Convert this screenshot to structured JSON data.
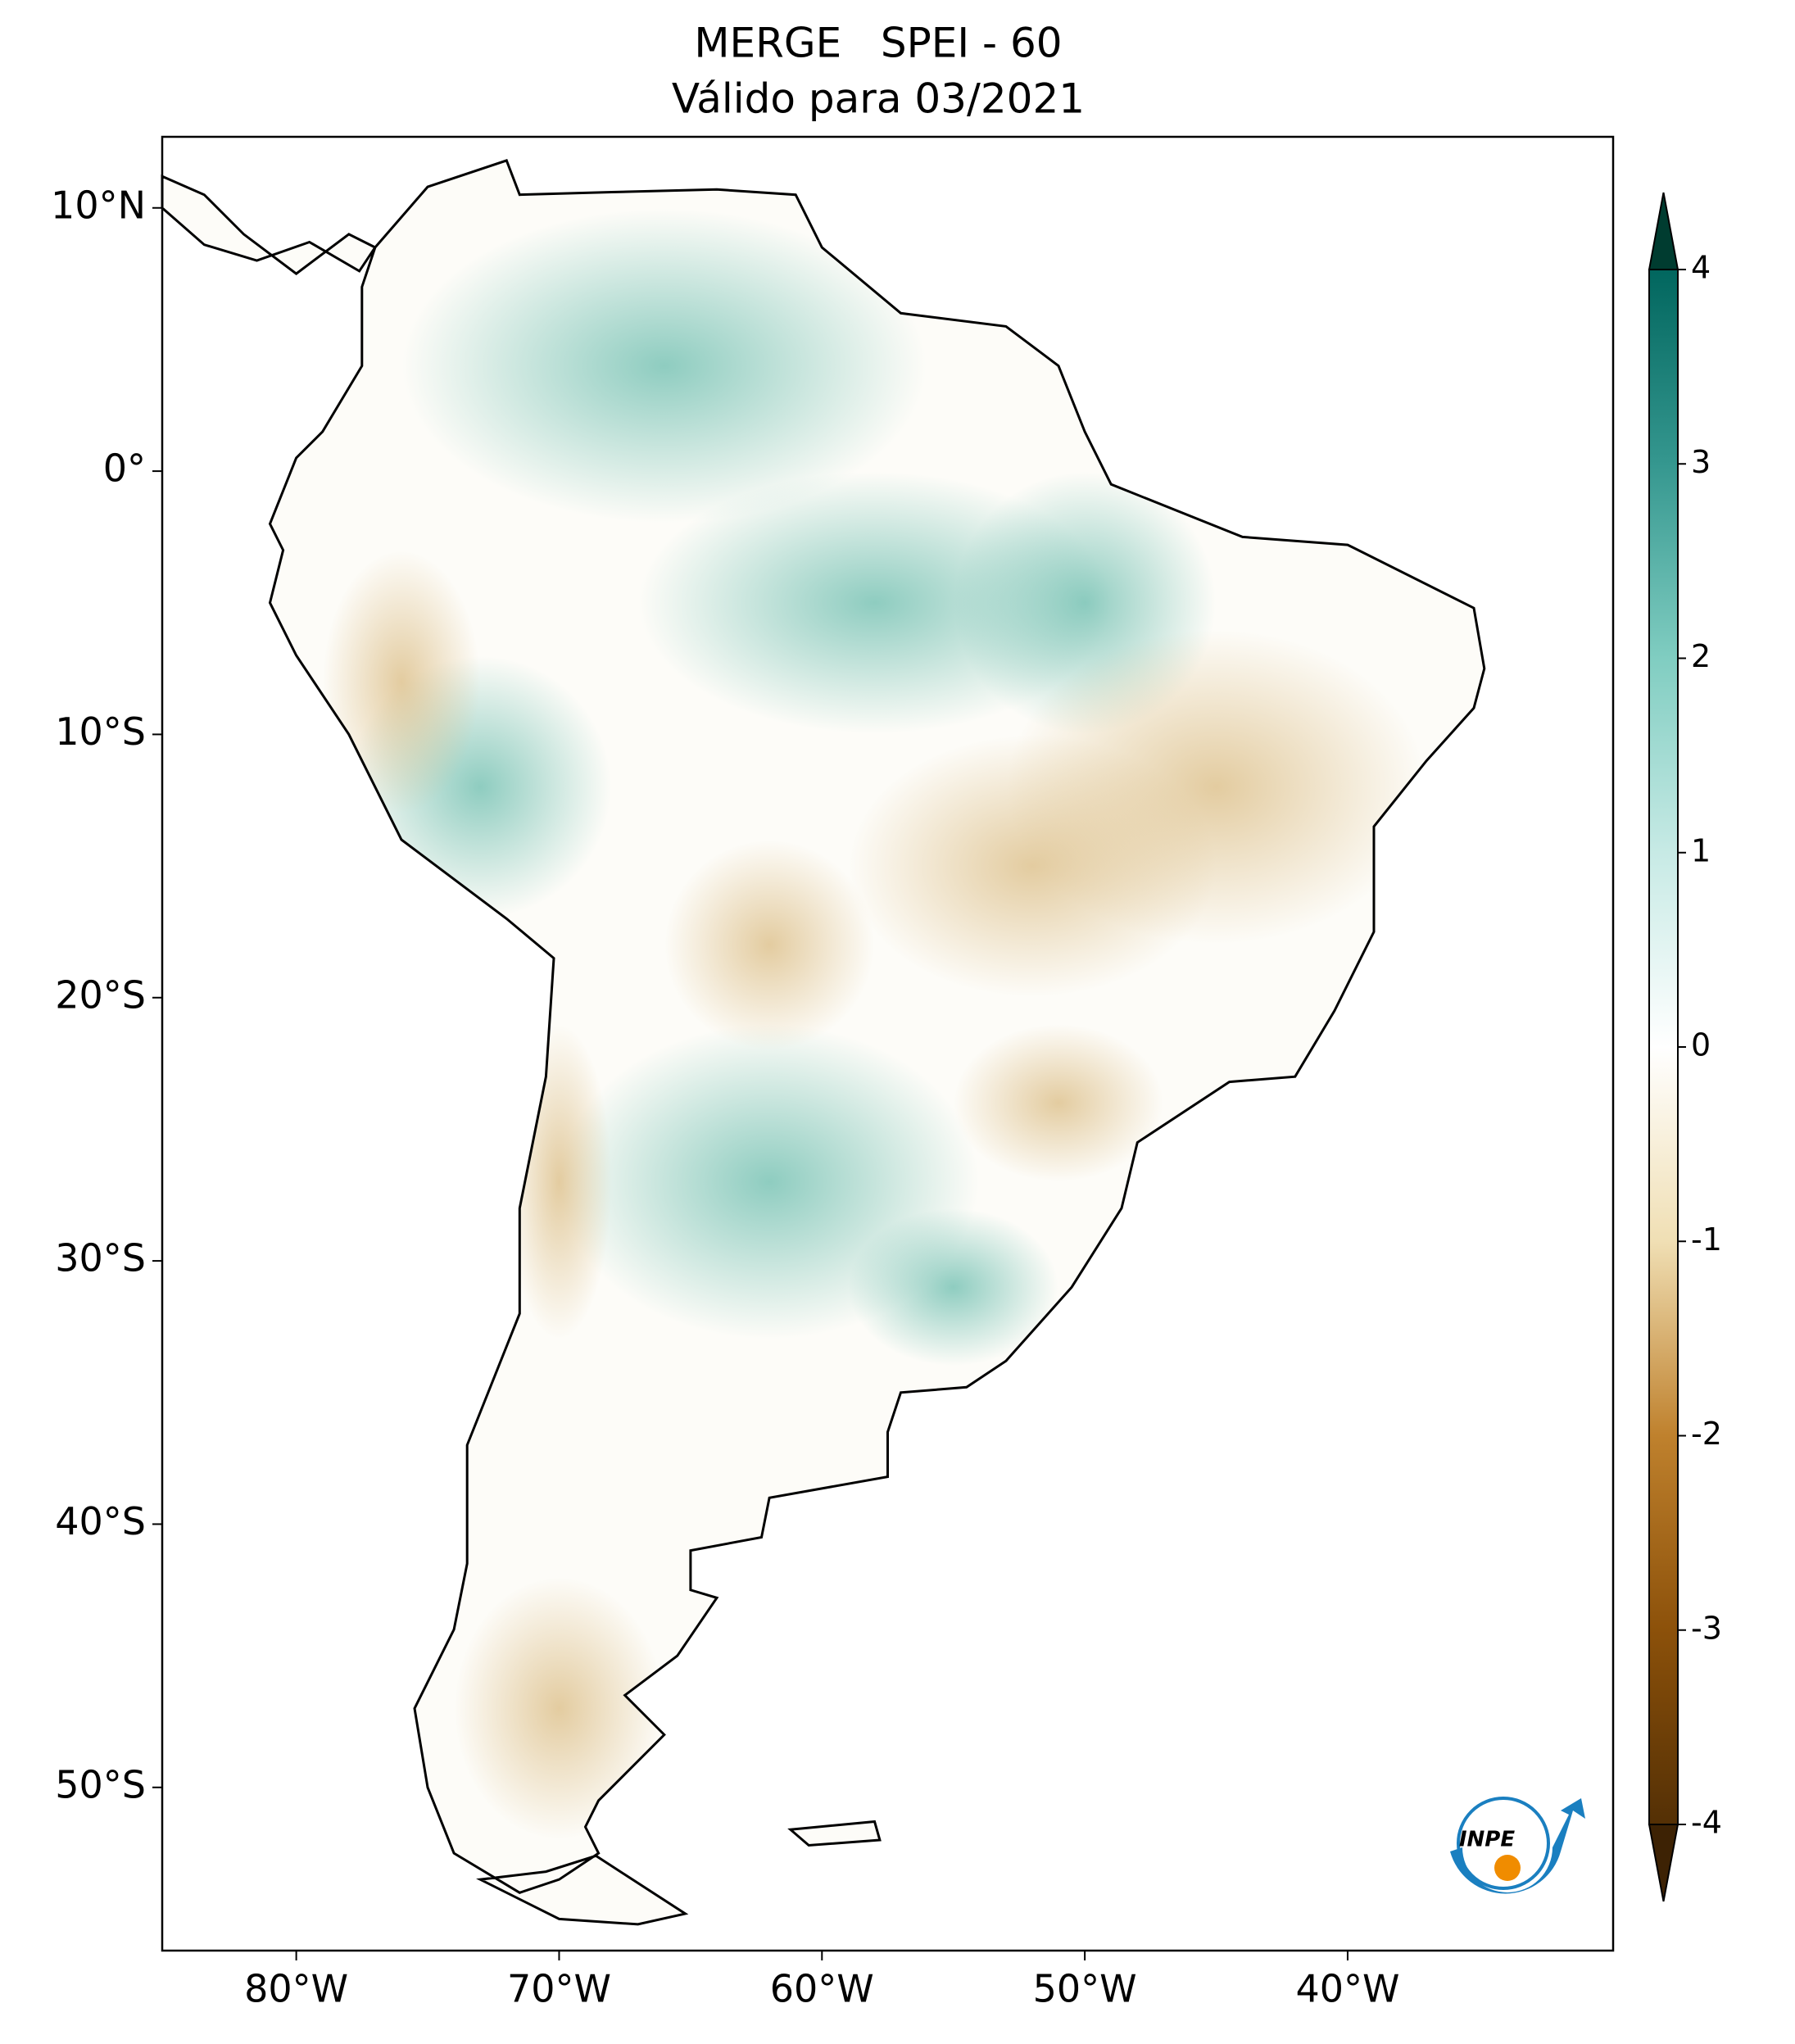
{
  "chart_data": {
    "type": "map",
    "title": "MERGE   SPEI - 60",
    "subtitle": "Válido para 03/2021",
    "xlim": [
      -85.1,
      -29.9
    ],
    "ylim": [
      -56.2,
      12.7
    ],
    "xticks": [
      {
        "value": -80,
        "label": "80°W"
      },
      {
        "value": -70,
        "label": "70°W"
      },
      {
        "value": -60,
        "label": "60°W"
      },
      {
        "value": -50,
        "label": "50°W"
      },
      {
        "value": -40,
        "label": "40°W"
      }
    ],
    "yticks": [
      {
        "value": 10,
        "label": "10°N"
      },
      {
        "value": 0,
        "label": "0°"
      },
      {
        "value": -10,
        "label": "10°S"
      },
      {
        "value": -20,
        "label": "20°S"
      },
      {
        "value": -30,
        "label": "30°S"
      },
      {
        "value": -40,
        "label": "40°S"
      },
      {
        "value": -50,
        "label": "50°S"
      }
    ],
    "colorbar": {
      "lim": [
        -4,
        4
      ],
      "ticks": [
        -4,
        -3,
        -2,
        -1,
        0,
        1,
        2,
        3,
        4
      ],
      "colors": [
        "#543005",
        "#8c510a",
        "#bf812d",
        "#f0dfb4",
        "#ffffff",
        "#c7eae5",
        "#80cdc1",
        "#35978f",
        "#01665e"
      ],
      "extend_low": "#3d2204",
      "extend_high": "#003c30"
    },
    "logo": "INPE"
  }
}
